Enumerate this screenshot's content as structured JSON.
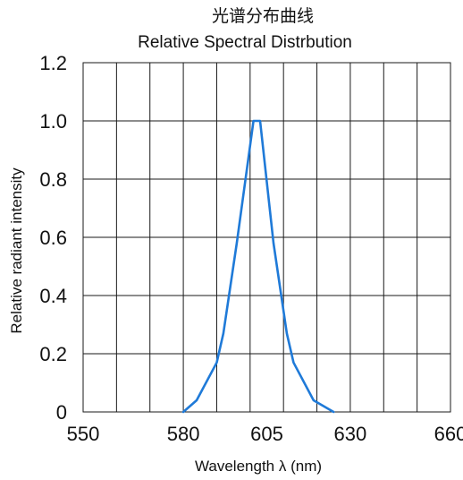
{
  "chart_data": {
    "type": "line",
    "title": "光谱分布曲线",
    "subtitle": "Relative Spectral Distrbution",
    "xlabel": "Wavelength  λ (nm)",
    "ylabel": "Relative radiant intensity",
    "xlim": [
      550,
      660
    ],
    "ylim": [
      0,
      1.2
    ],
    "x_tick_labels": [
      "550",
      "580",
      "605",
      "630",
      "660"
    ],
    "y_tick_labels": [
      "0",
      "0.2",
      "0.4",
      "0.6",
      "0.8",
      "1.0",
      "1.2"
    ],
    "grid": true,
    "series_color": "#1f7ad8",
    "series": [
      {
        "x": [
          580,
          584,
          590,
          592,
          596,
          601,
          603,
          607,
          611,
          613,
          619,
          625
        ],
        "values": [
          0,
          0.04,
          0.17,
          0.27,
          0.58,
          1.0,
          1.0,
          0.58,
          0.27,
          0.17,
          0.04,
          0
        ]
      }
    ]
  }
}
